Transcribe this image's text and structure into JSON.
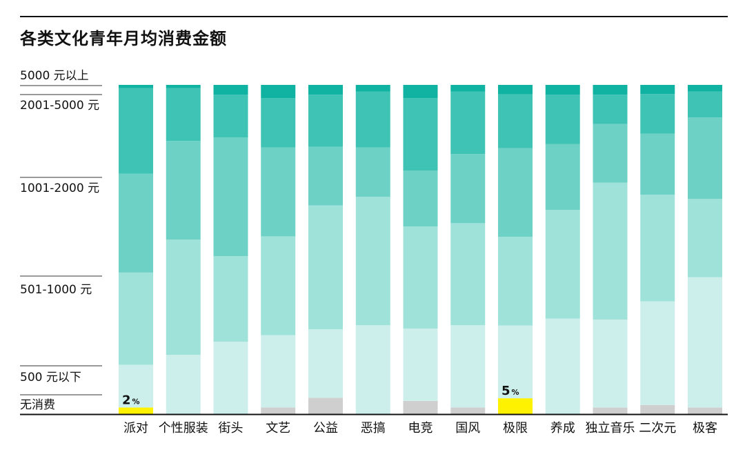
{
  "title": "各类文化青年月均消费金额",
  "chart_data": {
    "type": "bar",
    "stacked": "percent",
    "categories": [
      "派对",
      "个性服装",
      "街头",
      "文艺",
      "公益",
      "恶搞",
      "电竞",
      "国风",
      "极限",
      "养成",
      "独立音乐",
      "二次元",
      "极客"
    ],
    "series": [
      {
        "name": "无消费",
        "color": "#cfcfcf",
        "values": [
          2,
          0,
          0,
          2,
          5,
          0,
          4,
          2,
          5,
          0,
          2,
          3,
          2
        ]
      },
      {
        "name": "500 元以下",
        "color": "#ccefeb",
        "values": [
          13,
          18,
          22,
          22,
          21,
          27,
          22,
          25,
          23,
          29,
          27,
          34,
          40
        ]
      },
      {
        "name": "501-1000 元",
        "color": "#9fe2da",
        "values": [
          28,
          35,
          26,
          30,
          38,
          39,
          31,
          31,
          28,
          33,
          42,
          35,
          24
        ]
      },
      {
        "name": "1001-2000 元",
        "color": "#6dd1c6",
        "values": [
          30,
          30,
          36,
          27,
          18,
          15,
          17,
          21,
          28,
          20,
          18,
          20,
          25
        ]
      },
      {
        "name": "2001-5000 元",
        "color": "#3ec3b4",
        "values": [
          26,
          16,
          13,
          15,
          16,
          17,
          22,
          19,
          17,
          15,
          9,
          13,
          8
        ]
      },
      {
        "name": "5000 元以上",
        "color": "#10b3a2",
        "values": [
          1,
          1,
          3,
          4,
          3,
          2,
          4,
          2,
          3,
          3,
          3,
          3,
          2
        ]
      }
    ],
    "highlight": {
      "color": "#fff200",
      "categories": [
        "派对",
        "极限"
      ]
    },
    "annotations": [
      {
        "category": "派对",
        "value": "2",
        "unit": "%"
      },
      {
        "category": "极限",
        "value": "5",
        "unit": "%"
      }
    ],
    "legend_position": "left",
    "grid": false
  }
}
